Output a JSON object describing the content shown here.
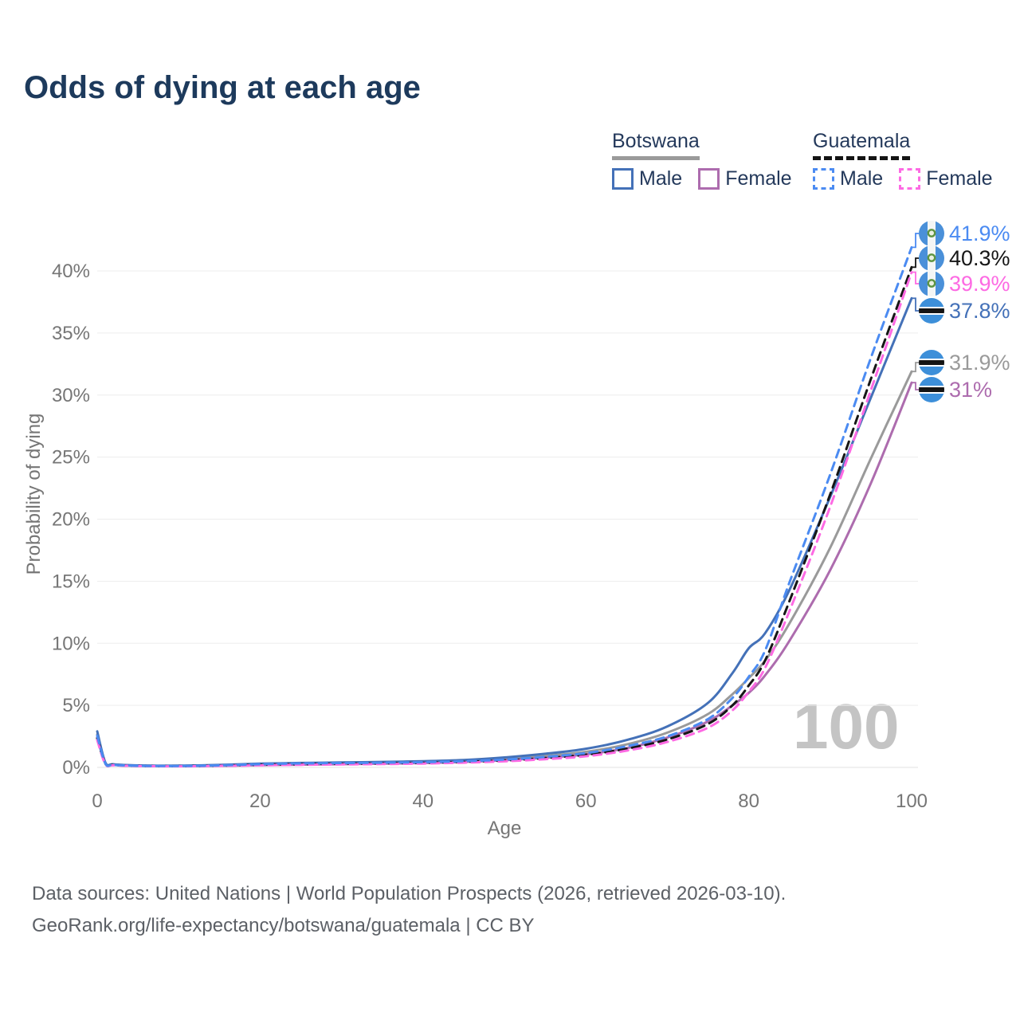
{
  "title": "Odds of dying at each age",
  "watermark": "100",
  "legend": {
    "groups": [
      {
        "name": "Botswana",
        "style": "solid",
        "underline_color": "#9a9a9a",
        "items": [
          {
            "label": "Male",
            "color": "#4471b8"
          },
          {
            "label": "Female",
            "color": "#ad6cae"
          }
        ]
      },
      {
        "name": "Guatemala",
        "style": "dashed",
        "underline_color": "#141414",
        "items": [
          {
            "label": "Male",
            "color": "#4b8bf2"
          },
          {
            "label": "Female",
            "color": "#fd6ae3"
          }
        ]
      }
    ]
  },
  "chart_data": {
    "type": "line",
    "title": "Odds of dying at each age",
    "xlabel": "Age",
    "ylabel": "Probability of dying",
    "x_ticks": [
      0,
      20,
      40,
      60,
      80,
      100
    ],
    "y_tick_labels": [
      "0%",
      "5%",
      "10%",
      "15%",
      "20%",
      "25%",
      "30%",
      "35%",
      "40%"
    ],
    "xlim": [
      0,
      100
    ],
    "ylim_percent": [
      0,
      43
    ],
    "grid": "horizontal",
    "legend_position": "top-right",
    "hovered_age": "100",
    "ages": [
      0,
      1,
      2,
      5,
      10,
      15,
      20,
      25,
      30,
      35,
      40,
      45,
      50,
      55,
      60,
      65,
      70,
      75,
      78,
      80,
      82,
      85,
      90,
      95,
      100
    ],
    "series": [
      {
        "name": "Botswana Male",
        "country": "Botswana",
        "sex": "Male",
        "style": "solid",
        "color": "#4471b8",
        "values_percent": [
          2.9,
          0.4,
          0.25,
          0.16,
          0.14,
          0.2,
          0.3,
          0.36,
          0.4,
          0.44,
          0.5,
          0.6,
          0.8,
          1.1,
          1.5,
          2.2,
          3.3,
          5.2,
          7.6,
          9.6,
          10.8,
          14.3,
          21.8,
          29.8,
          37.8
        ]
      },
      {
        "name": "Botswana Female",
        "country": "Botswana",
        "sex": "Female",
        "style": "solid",
        "color": "#ad6cae",
        "values_percent": [
          2.4,
          0.33,
          0.21,
          0.13,
          0.1,
          0.13,
          0.18,
          0.22,
          0.26,
          0.3,
          0.35,
          0.44,
          0.58,
          0.78,
          1.05,
          1.55,
          2.4,
          3.7,
          5.0,
          6.0,
          7.4,
          10.2,
          15.9,
          22.9,
          31.0
        ]
      },
      {
        "name": "Botswana",
        "country": "Botswana",
        "sex": "Both",
        "style": "solid",
        "color": "#9a9a9a",
        "values_percent": [
          2.65,
          0.37,
          0.23,
          0.15,
          0.12,
          0.17,
          0.25,
          0.3,
          0.34,
          0.37,
          0.42,
          0.52,
          0.68,
          0.92,
          1.25,
          1.85,
          2.8,
          4.3,
          5.9,
          7.2,
          8.6,
          11.6,
          17.7,
          24.9,
          31.9
        ]
      },
      {
        "name": "Guatemala Male",
        "country": "Guatemala",
        "sex": "Male",
        "style": "dashed",
        "color": "#4b8bf2",
        "values_percent": [
          2.55,
          0.32,
          0.2,
          0.13,
          0.11,
          0.16,
          0.26,
          0.32,
          0.35,
          0.38,
          0.42,
          0.5,
          0.63,
          0.85,
          1.15,
          1.7,
          2.5,
          3.9,
          5.6,
          7.3,
          9.4,
          14.9,
          23.6,
          33.0,
          41.9
        ]
      },
      {
        "name": "Guatemala Female",
        "country": "Guatemala",
        "sex": "Female",
        "style": "dashed",
        "color": "#fd6ae3",
        "values_percent": [
          2.2,
          0.27,
          0.17,
          0.11,
          0.09,
          0.12,
          0.17,
          0.21,
          0.24,
          0.27,
          0.31,
          0.38,
          0.49,
          0.66,
          0.9,
          1.35,
          2.05,
          3.2,
          4.6,
          6.1,
          8.0,
          12.6,
          21.0,
          30.4,
          39.9
        ]
      },
      {
        "name": "Guatemala",
        "country": "Guatemala",
        "sex": "Both",
        "style": "dashed",
        "color": "#161616",
        "values_percent": [
          2.35,
          0.3,
          0.19,
          0.12,
          0.1,
          0.14,
          0.21,
          0.26,
          0.29,
          0.32,
          0.36,
          0.44,
          0.56,
          0.75,
          1.02,
          1.5,
          2.25,
          3.5,
          5.0,
          6.6,
          8.6,
          13.4,
          22.0,
          31.3,
          40.3
        ]
      }
    ],
    "end_labels": [
      {
        "text": "41.9%",
        "series": "Guatemala Male",
        "flag": "guatemala"
      },
      {
        "text": "40.3%",
        "series": "Guatemala",
        "flag": "guatemala"
      },
      {
        "text": "39.9%",
        "series": "Guatemala Female",
        "flag": "guatemala"
      },
      {
        "text": "37.8%",
        "series": "Botswana Male",
        "flag": "botswana"
      },
      {
        "text": "31.9%",
        "series": "Botswana",
        "flag": "botswana"
      },
      {
        "text": "31%",
        "series": "Botswana Female",
        "flag": "botswana"
      }
    ]
  },
  "footer": {
    "line1": "Data sources: United Nations | World Population Prospects (2026, retrieved 2026-03-10).",
    "line2": "GeoRank.org/life-expectancy/botswana/guatemala | CC BY"
  }
}
